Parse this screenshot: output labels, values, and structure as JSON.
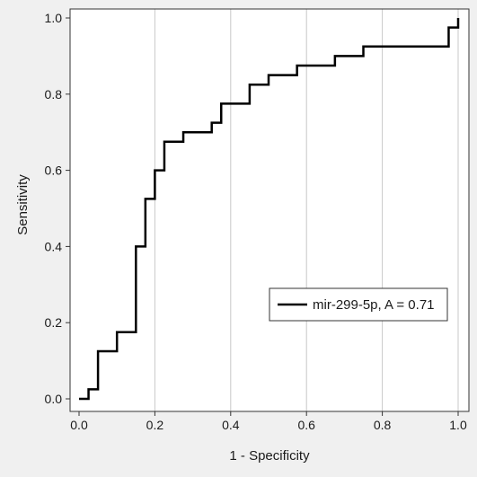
{
  "chart_data": {
    "type": "line",
    "xlabel": "1 - Specificity",
    "ylabel": "Sensitivity",
    "xlim": [
      0,
      1
    ],
    "ylim": [
      0,
      1
    ],
    "x_ticks": [
      "0.0",
      "0.2",
      "0.4",
      "0.6",
      "0.8",
      "1.0"
    ],
    "y_ticks": [
      "0.0",
      "0.2",
      "0.4",
      "0.6",
      "0.8",
      "1.0"
    ],
    "grid": "vertical",
    "legend_position": "lower-right",
    "series": [
      {
        "name": "mir-299-5p, A = 0.71",
        "x": [
          0.0,
          0.025,
          0.025,
          0.05,
          0.05,
          0.1,
          0.1,
          0.15,
          0.15,
          0.175,
          0.175,
          0.2,
          0.2,
          0.225,
          0.225,
          0.275,
          0.275,
          0.35,
          0.35,
          0.375,
          0.375,
          0.45,
          0.45,
          0.5,
          0.5,
          0.575,
          0.575,
          0.675,
          0.675,
          0.75,
          0.75,
          0.975,
          0.975,
          1.0,
          1.0
        ],
        "y": [
          0.0,
          0.0,
          0.025,
          0.025,
          0.125,
          0.125,
          0.175,
          0.175,
          0.4,
          0.4,
          0.525,
          0.525,
          0.6,
          0.6,
          0.675,
          0.675,
          0.7,
          0.7,
          0.725,
          0.725,
          0.775,
          0.775,
          0.825,
          0.825,
          0.85,
          0.85,
          0.875,
          0.875,
          0.9,
          0.9,
          0.925,
          0.925,
          0.975,
          0.975,
          1.0
        ],
        "color": "#000000"
      }
    ],
    "background_color": "#f0f0f0",
    "plot_background_color": "#ffffff",
    "grid_color": "#c8c8c8"
  }
}
